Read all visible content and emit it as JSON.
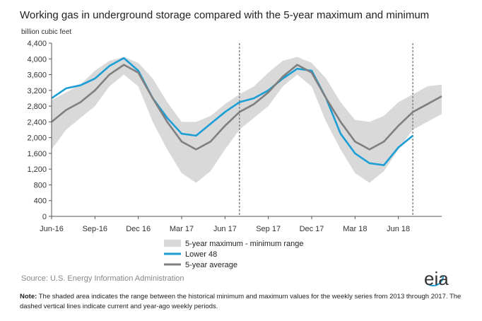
{
  "chart_data": {
    "type": "line",
    "title": "Working gas in underground  storage compared with the 5-year maximum and minimum",
    "y_label": "billion cubic feet",
    "categories": [
      "Jun-16",
      null,
      null,
      "Sep-16",
      null,
      null,
      "Dec 16",
      null,
      null,
      "Mar 17",
      null,
      null,
      "Jun 17",
      null,
      null,
      "Sep 17",
      null,
      null,
      "Dec 17",
      null,
      null,
      "Mar 18",
      null,
      null,
      "Jun 18",
      null,
      null,
      null
    ],
    "ylim": [
      0,
      4400
    ],
    "yticks": [
      0,
      400,
      800,
      {
        "value": 1200,
        "label": "1,200"
      },
      {
        "value": 1600,
        "label": "1,600"
      },
      {
        "value": 2000,
        "label": "2,000"
      },
      {
        "value": 2400,
        "label": "2,400"
      },
      {
        "value": 2800,
        "label": "2,800"
      },
      {
        "value": 3200,
        "label": "3,200"
      },
      {
        "value": 3600,
        "label": "3,600"
      },
      {
        "value": 4000,
        "label": "4,000"
      },
      {
        "value": 4400,
        "label": "4,400"
      }
    ],
    "reference_lines": [
      13,
      25
    ],
    "series": [
      {
        "name": "5-year maximum - minimum range",
        "color": "#d9d9d9",
        "kind": "range",
        "values": [
          2950,
          3150,
          3350,
          3700,
          3950,
          4050,
          3900,
          3500,
          2900,
          2400,
          2400,
          2550,
          2850,
          3100,
          3300,
          3650,
          3950,
          4050,
          3900,
          3500,
          2900,
          2450,
          2400,
          2550,
          2900,
          3100,
          3300,
          3350
        ],
        "low": [
          1700,
          2200,
          2500,
          2800,
          3300,
          3600,
          3300,
          2400,
          1700,
          1100,
          850,
          1150,
          1700,
          2200,
          2500,
          2800,
          3300,
          3600,
          3300,
          2400,
          1700,
          1100,
          850,
          1150,
          1700,
          2200,
          2400,
          2600
        ]
      },
      {
        "name": "Lower 48",
        "color": "#1a9ed5",
        "values": [
          3000,
          3250,
          3330,
          3500,
          3820,
          4020,
          3700,
          3000,
          2500,
          2100,
          2050,
          2350,
          2650,
          2900,
          3000,
          3200,
          3500,
          3750,
          3700,
          3000,
          2100,
          1600,
          1350,
          1300,
          1750,
          2050,
          null,
          null
        ]
      },
      {
        "name": "5-year average",
        "color": "#7f7f7f",
        "values": [
          2400,
          2700,
          2900,
          3200,
          3600,
          3850,
          3650,
          3000,
          2400,
          1900,
          1700,
          1900,
          2300,
          2650,
          2850,
          3150,
          3550,
          3850,
          3650,
          3000,
          2400,
          1900,
          1700,
          1900,
          2300,
          2650,
          2850,
          3050
        ]
      }
    ],
    "source": "Source:  U.S. Energy Information Administration",
    "logo": "eia",
    "note_label": "Note:",
    "note": " The shaded area indicates the range between the historical minimum and maximum values for the weekly series from 2013 through 2017. The dashed vertical lines indicate current and year-ago weekly periods."
  }
}
